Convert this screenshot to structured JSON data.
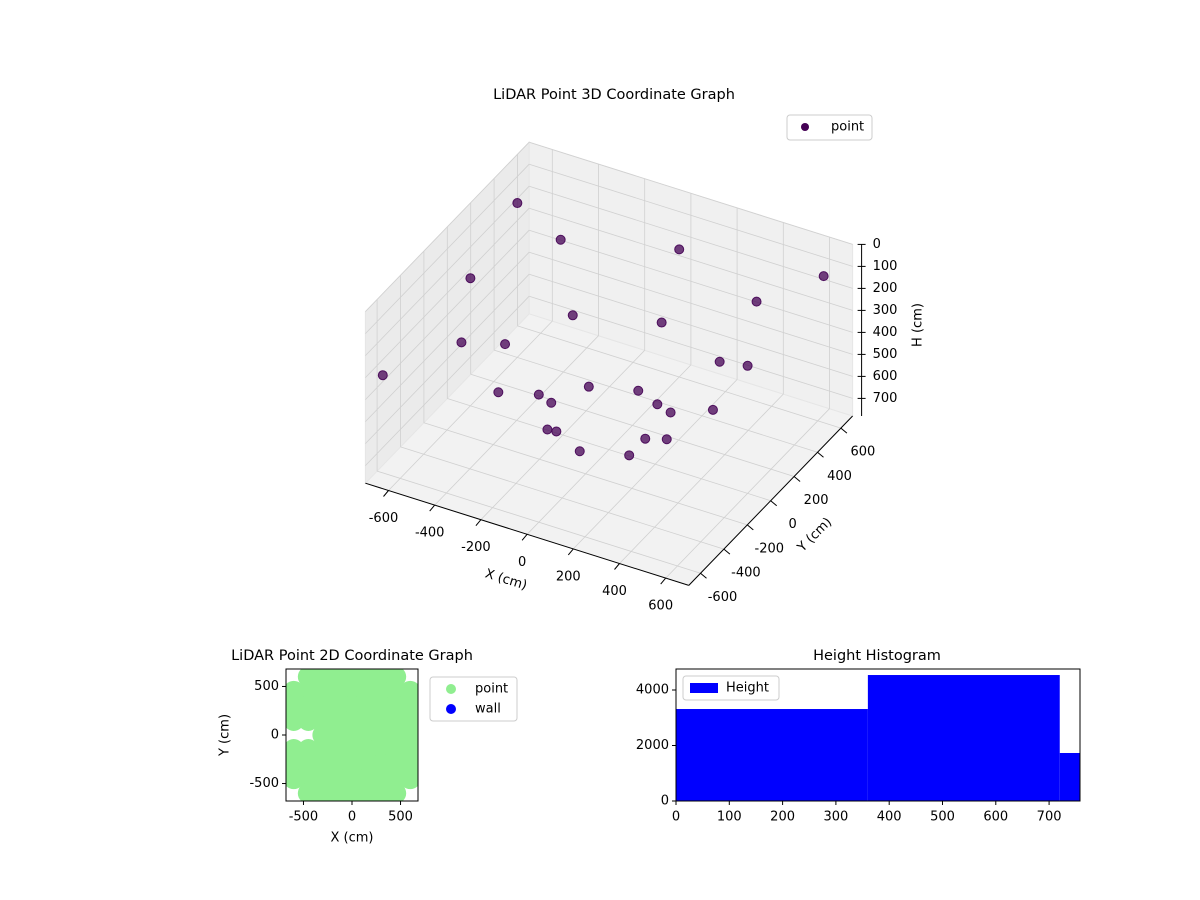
{
  "chart_data": [
    {
      "type": "scatter3d",
      "title": "LiDAR Point 3D Coordinate Graph",
      "xlabel": "X (cm)",
      "ylabel": "Y (cm)",
      "zlabel": "H (cm)",
      "xlim": [
        -700,
        700
      ],
      "ylim": [
        -700,
        700
      ],
      "zlim": [
        0,
        780
      ],
      "z_inverted": true,
      "grid": true,
      "xticks": [
        -600,
        -400,
        -200,
        0,
        200,
        400,
        600
      ],
      "yticks": [
        -600,
        -400,
        -200,
        0,
        200,
        400,
        600
      ],
      "zticks": [
        0,
        100,
        200,
        300,
        400,
        500,
        600,
        700
      ],
      "legend_loc": "upper right",
      "series": [
        {
          "name": "point",
          "color": "#440154",
          "x": [
            600,
            424,
            0,
            -424,
            -600,
            -424,
            0,
            424,
            450,
            318,
            0,
            -318,
            -450,
            -318,
            0,
            318,
            250,
            177,
            0,
            -177,
            -250,
            -177,
            0,
            177,
            -650,
            -650,
            600
          ],
          "y": [
            0,
            424,
            600,
            424,
            0,
            -424,
            -600,
            -424,
            0,
            318,
            450,
            318,
            0,
            -318,
            -450,
            -318,
            0,
            177,
            250,
            177,
            0,
            -177,
            -250,
            -177,
            500,
            -650,
            650
          ],
          "z": [
            200,
            200,
            200,
            200,
            200,
            200,
            200,
            200,
            450,
            450,
            450,
            450,
            450,
            450,
            450,
            450,
            650,
            650,
            650,
            650,
            650,
            650,
            650,
            650,
            150,
            300,
            150
          ]
        }
      ]
    },
    {
      "type": "scatter",
      "title": "LiDAR Point 2D Coordinate Graph",
      "xlabel": "X (cm)",
      "ylabel": "Y (cm)",
      "xlim": [
        -680,
        680
      ],
      "ylim": [
        -680,
        680
      ],
      "xticks": [
        -500,
        0,
        500
      ],
      "yticks": [
        -500,
        0,
        500
      ],
      "legend_loc": "outside upper right",
      "series": [
        {
          "name": "point",
          "color": "#90ee90",
          "x": [
            -450,
            -300,
            -150,
            0,
            150,
            300,
            450,
            -600,
            -450,
            -300,
            -150,
            0,
            150,
            300,
            450,
            600,
            -600,
            -450,
            -300,
            -150,
            0,
            150,
            300,
            450,
            600,
            -600,
            -450,
            -300,
            -150,
            0,
            150,
            300,
            450,
            600,
            -300,
            -150,
            0,
            150,
            300,
            450,
            600,
            -600,
            -450,
            -300,
            -150,
            0,
            150,
            300,
            450,
            600,
            -600,
            -450,
            -300,
            -150,
            0,
            150,
            300,
            450,
            600,
            -600,
            -450,
            -300,
            -150,
            0,
            150,
            300,
            450,
            600,
            -450,
            -300,
            -150,
            0,
            150,
            300,
            450
          ],
          "y": [
            600,
            600,
            600,
            600,
            600,
            600,
            600,
            450,
            450,
            450,
            450,
            450,
            450,
            450,
            450,
            450,
            300,
            300,
            300,
            300,
            300,
            300,
            300,
            300,
            300,
            150,
            150,
            150,
            150,
            150,
            150,
            150,
            150,
            150,
            0,
            0,
            0,
            0,
            0,
            0,
            0,
            -150,
            -150,
            -150,
            -150,
            -150,
            -150,
            -150,
            -150,
            -150,
            -300,
            -300,
            -300,
            -300,
            -300,
            -300,
            -300,
            -300,
            -300,
            -450,
            -450,
            -450,
            -450,
            -450,
            -450,
            -450,
            -450,
            -450,
            -600,
            -600,
            -600,
            -600,
            -600,
            -600,
            -600
          ]
        },
        {
          "name": "wall",
          "color": "#0000ff",
          "x": [],
          "y": []
        }
      ]
    },
    {
      "type": "histogram",
      "title": "Height Histogram",
      "bins": [
        0,
        360,
        720,
        758
      ],
      "series": [
        {
          "name": "Height",
          "color": "#0000ff",
          "values": [
            3315,
            4540,
            1730
          ]
        }
      ],
      "xlim": [
        0,
        758
      ],
      "ylim": [
        0,
        4757
      ],
      "xticks": [
        0,
        100,
        200,
        300,
        400,
        500,
        600,
        700
      ],
      "yticks": [
        0,
        2000,
        4000
      ],
      "legend_loc": "upper left"
    }
  ]
}
